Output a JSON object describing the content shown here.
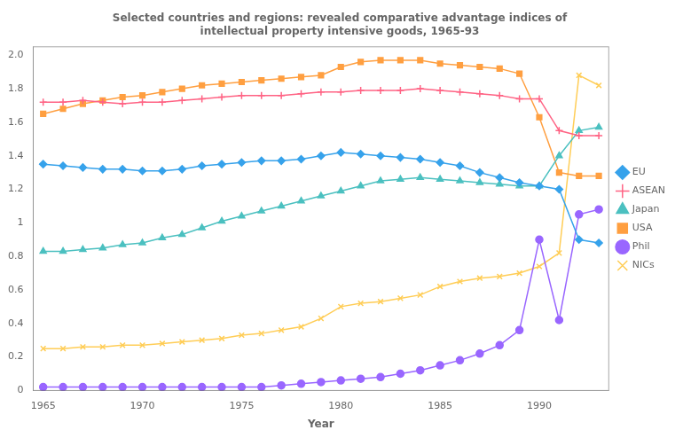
{
  "chart_data": {
    "type": "line",
    "title": "Selected countries and regions: revealed comparative advantage indices of\nintellectual property intensive goods, 1965-93",
    "x_label": "Year",
    "x": [
      1965,
      1966,
      1967,
      1968,
      1969,
      1970,
      1971,
      1972,
      1973,
      1974,
      1975,
      1976,
      1977,
      1978,
      1979,
      1980,
      1981,
      1982,
      1983,
      1984,
      1985,
      1986,
      1987,
      1988,
      1989,
      1990,
      1991,
      1992,
      1993
    ],
    "series": [
      {
        "name": "EU",
        "marker": "diamond",
        "values": [
          1.35,
          1.34,
          1.33,
          1.32,
          1.32,
          1.31,
          1.31,
          1.32,
          1.34,
          1.35,
          1.36,
          1.37,
          1.37,
          1.38,
          1.4,
          1.42,
          1.41,
          1.4,
          1.39,
          1.38,
          1.36,
          1.34,
          1.3,
          1.27,
          1.24,
          1.22,
          1.2,
          0.9,
          0.88
        ]
      },
      {
        "name": "ASEAN",
        "marker": "plus",
        "values": [
          1.72,
          1.72,
          1.73,
          1.72,
          1.71,
          1.72,
          1.72,
          1.73,
          1.74,
          1.75,
          1.76,
          1.76,
          1.76,
          1.77,
          1.78,
          1.78,
          1.79,
          1.79,
          1.79,
          1.8,
          1.79,
          1.78,
          1.77,
          1.76,
          1.74,
          1.74,
          1.55,
          1.52,
          1.52
        ]
      },
      {
        "name": "Japan",
        "marker": "triangle",
        "values": [
          0.83,
          0.83,
          0.84,
          0.85,
          0.87,
          0.88,
          0.91,
          0.93,
          0.97,
          1.01,
          1.04,
          1.07,
          1.1,
          1.13,
          1.16,
          1.19,
          1.22,
          1.25,
          1.26,
          1.27,
          1.26,
          1.25,
          1.24,
          1.23,
          1.22,
          1.22,
          1.4,
          1.55,
          1.57
        ]
      },
      {
        "name": "USA",
        "marker": "square",
        "values": [
          1.65,
          1.68,
          1.71,
          1.73,
          1.75,
          1.76,
          1.78,
          1.8,
          1.82,
          1.83,
          1.84,
          1.85,
          1.86,
          1.87,
          1.88,
          1.93,
          1.96,
          1.97,
          1.97,
          1.97,
          1.95,
          1.94,
          1.93,
          1.92,
          1.89,
          1.63,
          1.3,
          1.28,
          1.28
        ]
      },
      {
        "name": "Phil",
        "marker": "circle",
        "values": [
          0.02,
          0.02,
          0.02,
          0.02,
          0.02,
          0.02,
          0.02,
          0.02,
          0.02,
          0.02,
          0.02,
          0.02,
          0.03,
          0.04,
          0.05,
          0.06,
          0.07,
          0.08,
          0.1,
          0.12,
          0.15,
          0.18,
          0.22,
          0.27,
          0.36,
          0.9,
          0.42,
          1.05,
          1.08
        ]
      },
      {
        "name": "NICs",
        "marker": "x",
        "values": [
          0.25,
          0.25,
          0.26,
          0.26,
          0.27,
          0.27,
          0.28,
          0.29,
          0.3,
          0.31,
          0.33,
          0.34,
          0.36,
          0.38,
          0.43,
          0.5,
          0.52,
          0.53,
          0.55,
          0.57,
          0.62,
          0.65,
          0.67,
          0.68,
          0.7,
          0.74,
          0.82,
          1.88,
          1.82
        ]
      }
    ],
    "xlim": [
      1964.5,
      1993.5
    ],
    "xticks": [
      1965,
      1970,
      1975,
      1980,
      1985,
      1990
    ],
    "ylim": [
      0,
      2.05
    ],
    "yticks": [
      0,
      0.2,
      0.4,
      0.6,
      0.8,
      1,
      1.2,
      1.4,
      1.6,
      1.8,
      {
        "value": 2.0,
        "label": "2.0"
      }
    ],
    "grid": false,
    "legend": "right"
  }
}
